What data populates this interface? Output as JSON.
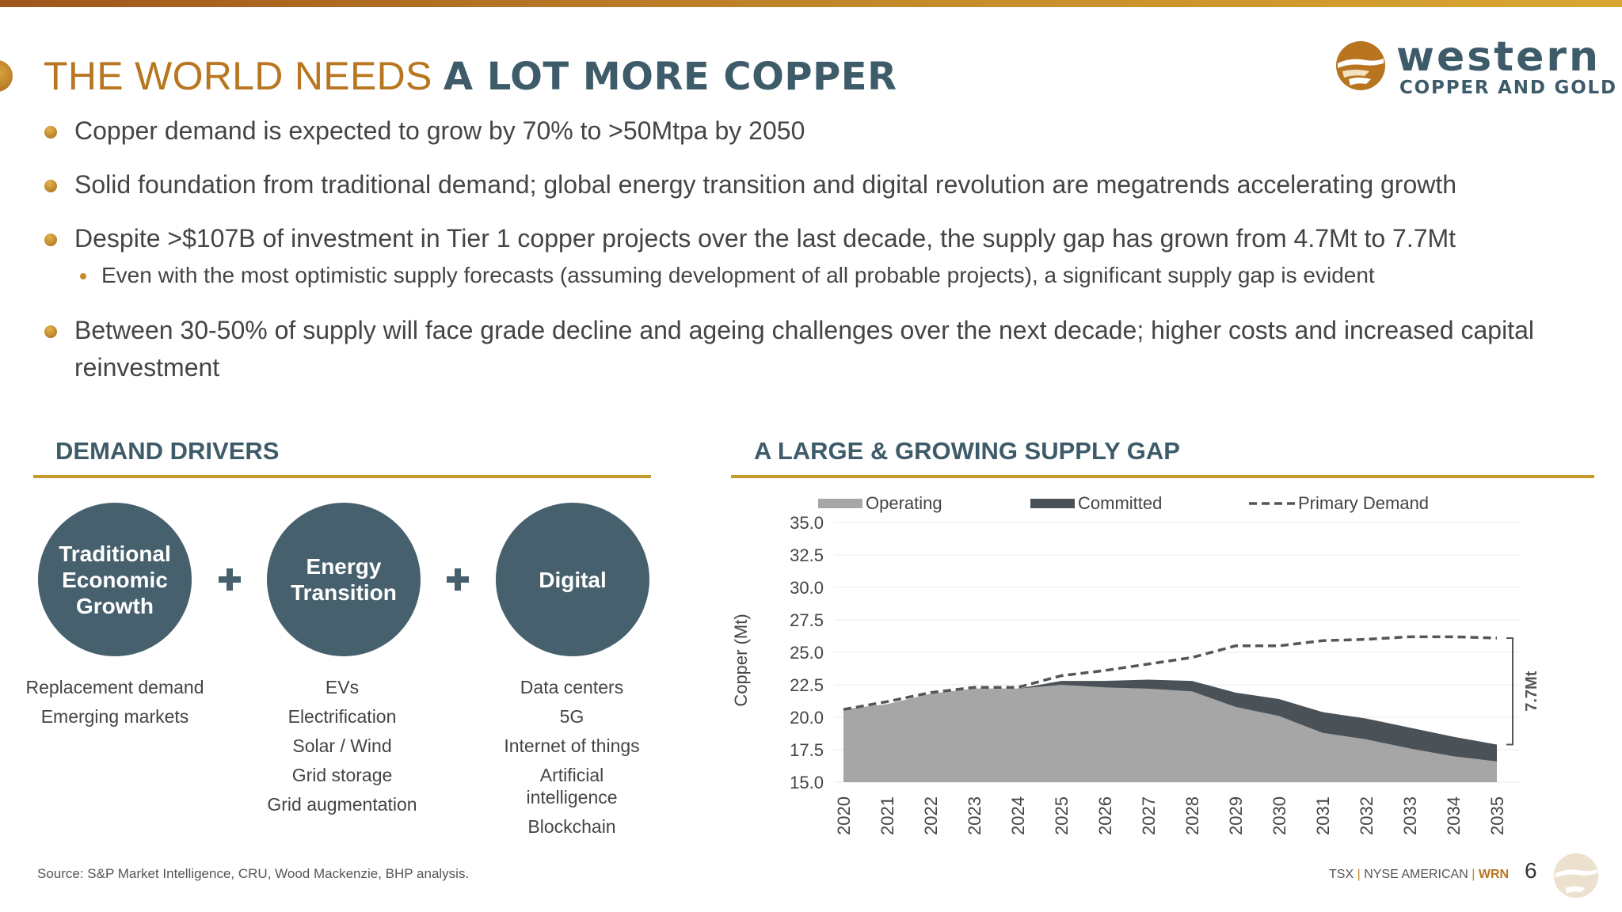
{
  "slide": {
    "title_plain": "THE WORLD NEEDS",
    "title_bold": "A LOT MORE COPPER",
    "page_number": "6",
    "source": "Source: S&P Market Intelligence, CRU, Wood Mackenzie, BHP analysis."
  },
  "logo": {
    "word": "western",
    "sub": "COPPER AND GOLD",
    "mark_icon": "eagle-sun-logo-icon"
  },
  "bullets": [
    "Copper demand is expected to grow by 70% to >50Mtpa by 2050",
    "Solid foundation from traditional demand; global energy transition and digital revolution are megatrends accelerating growth",
    "Despite >$107B of investment in Tier 1 copper projects over the last decade, the supply gap has grown from 4.7Mt to 7.7Mt",
    "Between 30-50% of supply will face grade decline and ageing challenges over the next decade; higher costs and increased capital reinvestment"
  ],
  "sub_bullet": "Even with the most optimistic supply forecasts (assuming development of all probable projects), a significant supply gap is evident",
  "drivers": {
    "heading": "DEMAND DRIVERS",
    "items": [
      {
        "label": "Traditional Economic Growth",
        "lines": [
          "Traditional",
          "Economic",
          "Growth"
        ],
        "examples": [
          "Replacement demand",
          "Emerging markets"
        ]
      },
      {
        "label": "Energy Transition",
        "lines": [
          "Energy",
          "Transition"
        ],
        "examples": [
          "EVs",
          "Electrification",
          "Solar / Wind",
          "Grid storage",
          "Grid augmentation"
        ]
      },
      {
        "label": "Digital",
        "lines": [
          "Digital"
        ],
        "examples": [
          "Data centers",
          "5G",
          "Internet of things",
          "Artificial intelligence",
          "Blockchain"
        ]
      }
    ]
  },
  "supply_gap": {
    "heading": "A LARGE & GROWING SUPPLY GAP"
  },
  "footer": {
    "exchange": "TSX",
    "exchange2": "NYSE AMERICAN",
    "symbol": "WRN"
  },
  "colors": {
    "accent_gold": "#c59a2e",
    "brand_teal": "#46606d",
    "operating": "#a6a6a6",
    "committed": "#4a5257"
  },
  "chart_data": {
    "type": "area",
    "title": "A LARGE & GROWING SUPPLY GAP",
    "xlabel": "",
    "ylabel": "Copper (Mt)",
    "ylim": [
      15,
      35
    ],
    "yticks": [
      "35.0",
      "32.5",
      "30.0",
      "27.5",
      "25.0",
      "22.5",
      "20.0",
      "17.5",
      "15.0"
    ],
    "x": [
      "2020",
      "2021",
      "2022",
      "2023",
      "2024",
      "2025",
      "2026",
      "2027",
      "2028",
      "2029",
      "2030",
      "2031",
      "2032",
      "2033",
      "2034",
      "2035"
    ],
    "series": [
      {
        "name": "Operating",
        "style": "area",
        "values": [
          20.6,
          21.0,
          21.8,
          22.2,
          22.2,
          22.5,
          22.3,
          22.2,
          22.0,
          20.8,
          20.1,
          18.8,
          18.3,
          17.6,
          17.0,
          16.6
        ]
      },
      {
        "name": "Committed",
        "style": "area-stacked",
        "values": [
          0.0,
          0.0,
          0.0,
          0.0,
          0.0,
          0.3,
          0.5,
          0.7,
          0.8,
          1.1,
          1.3,
          1.6,
          1.6,
          1.6,
          1.5,
          1.3
        ]
      },
      {
        "name": "Primary Demand",
        "style": "dashed-line",
        "values": [
          20.6,
          21.2,
          21.9,
          22.3,
          22.3,
          23.2,
          23.6,
          24.1,
          24.6,
          25.5,
          25.5,
          25.9,
          26.0,
          26.2,
          26.2,
          26.1
        ]
      }
    ],
    "legend_position": "top",
    "annotation": "7.7Mt",
    "grid": true
  }
}
